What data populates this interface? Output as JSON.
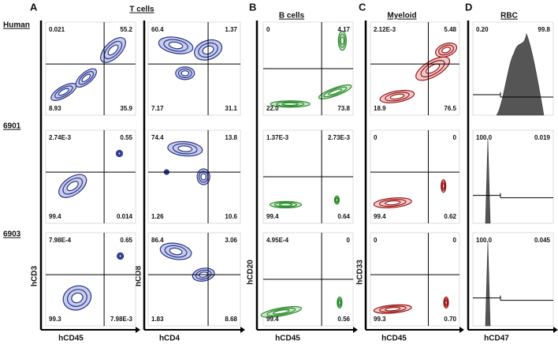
{
  "panel_letters": [
    "A",
    "B",
    "C",
    "D"
  ],
  "column_titles": [
    "T cells",
    "B cells",
    "Myeloid",
    "RBC"
  ],
  "row_labels": [
    "Human",
    "6901",
    "6903"
  ],
  "y_axis_labels": [
    "hCD3",
    "hCD8",
    "hCD20",
    "hCD33"
  ],
  "x_axis_labels": [
    "hCD45",
    "hCD4",
    "hCD45",
    "hCD45",
    "hCD47"
  ],
  "plots": [
    [
      [
        "0.021",
        "55.2",
        "8.93",
        "35.9"
      ],
      [
        "60.4",
        "1.37",
        "7.17",
        "31.1"
      ],
      [
        "0",
        "4.17",
        "22.0",
        "73.8"
      ],
      [
        "2.12E-3",
        "5.48",
        "18.9",
        "76.5"
      ],
      [
        "0.20",
        "99.8"
      ]
    ],
    [
      [
        "2.74E-3",
        "0.55",
        "99.4",
        "0.014"
      ],
      [
        "74.4",
        "13.8",
        "1.26",
        "10.6"
      ],
      [
        "1.37E-3",
        "2.73E-3",
        "99.4",
        "0.64"
      ],
      [
        "0",
        "0",
        "99.4",
        "0.62"
      ],
      [
        "100.0",
        "0.019"
      ]
    ],
    [
      [
        "7.98E-4",
        "0.65",
        "99.3",
        "7.98E-3"
      ],
      [
        "86.4",
        "3.06",
        "1.83",
        "8.68"
      ],
      [
        "4.95E-4",
        "0",
        "99.4",
        "0.56"
      ],
      [
        "0",
        "0",
        "99.3",
        "0.70"
      ],
      [
        "100.0",
        "0.045"
      ]
    ]
  ]
}
